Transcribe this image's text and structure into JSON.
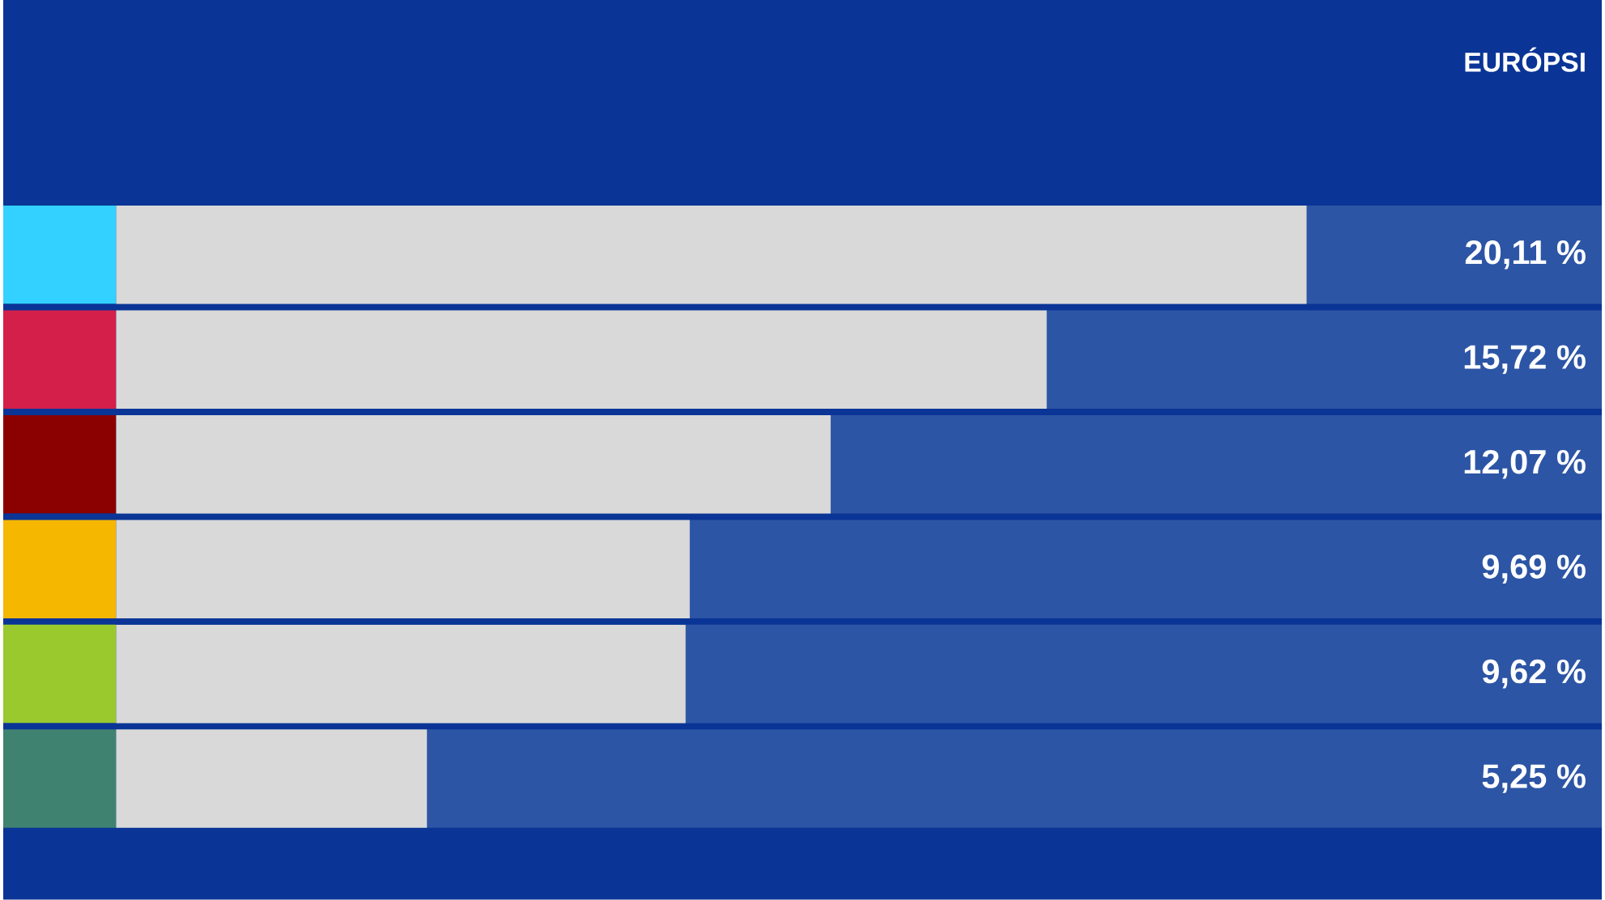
{
  "chart_data": {
    "type": "bar",
    "orientation": "horizontal",
    "title": "EURÓPSI",
    "categories": [
      null,
      null,
      null,
      null,
      null,
      null
    ],
    "values": [
      20.11,
      15.72,
      12.07,
      9.69,
      9.62,
      5.25
    ],
    "value_labels": [
      "20,11 %",
      "15,72 %",
      "12,07 %",
      "9,69 %",
      "9,62 %",
      "5,25 %"
    ],
    "color": "#d9d9d9"
  }
}
